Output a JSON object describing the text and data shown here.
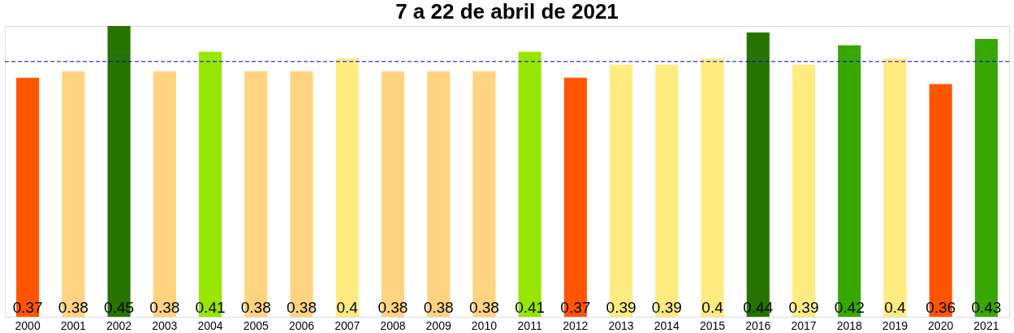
{
  "chart_data": {
    "type": "bar",
    "title": "7 a 22 de abril de 2021",
    "categories": [
      "2000",
      "2001",
      "2002",
      "2003",
      "2004",
      "2005",
      "2006",
      "2007",
      "2008",
      "2009",
      "2010",
      "2011",
      "2012",
      "2013",
      "2014",
      "2015",
      "2016",
      "2017",
      "2018",
      "2019",
      "2020",
      "2021"
    ],
    "values": [
      0.37,
      0.38,
      0.45,
      0.38,
      0.41,
      0.38,
      0.38,
      0.4,
      0.38,
      0.38,
      0.38,
      0.41,
      0.37,
      0.39,
      0.39,
      0.4,
      0.44,
      0.39,
      0.42,
      0.4,
      0.36,
      0.43
    ],
    "colors": [
      "#ff5500",
      "#ffd37f",
      "#267300",
      "#ffd37f",
      "#98e600",
      "#ffd37f",
      "#ffd37f",
      "#ffeb80",
      "#ffd37f",
      "#ffd37f",
      "#ffd37f",
      "#98e600",
      "#ff5500",
      "#ffeb80",
      "#ffeb80",
      "#ffeb80",
      "#267300",
      "#ffeb80",
      "#38a800",
      "#ffeb80",
      "#ff5500",
      "#38a800"
    ],
    "data_labels": true,
    "ref_lines": [
      {
        "axis": "y",
        "value": 0.395,
        "color": "#0000ff",
        "line_style": "dashed"
      }
    ],
    "grid": false
  }
}
